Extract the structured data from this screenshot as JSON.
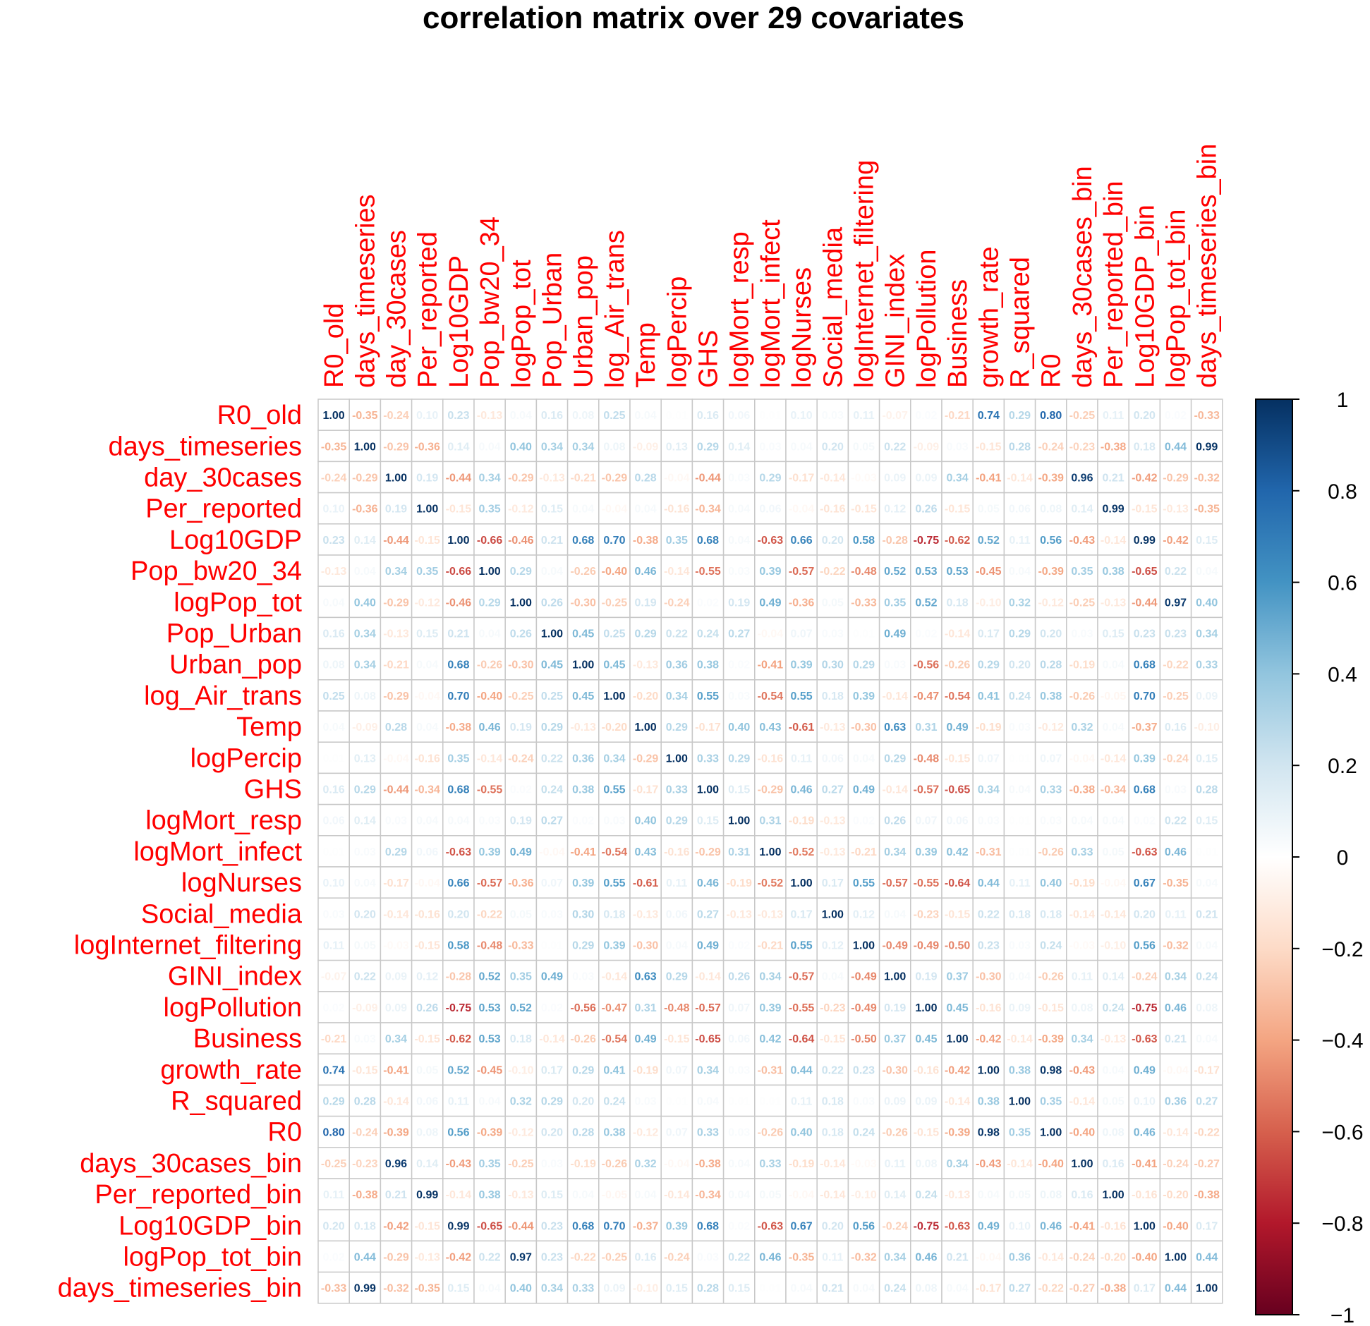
{
  "chart_data": {
    "type": "heatmap",
    "title": "correlation matrix over 29 covariates",
    "variables": [
      "R0_old",
      "days_timeseries",
      "day_30cases",
      "Per_reported",
      "Log10GDP",
      "Pop_bw20_34",
      "logPop_tot",
      "Pop_Urban",
      "Urban_pop",
      "log_Air_trans",
      "Temp",
      "logPercip",
      "GHS",
      "logMort_resp",
      "logMort_infect",
      "logNurses",
      "Social_media",
      "logInternet_filtering",
      "GINI_index",
      "logPollution",
      "Business",
      "growth_rate",
      "R_squared",
      "R0",
      "days_30cases_bin",
      "Per_reported_bin",
      "Log10GDP_bin",
      "logPop_tot_bin",
      "days_timeseries_bin"
    ],
    "matrix": [
      [
        1.0,
        -0.35,
        -0.24,
        0.1,
        0.23,
        -0.13,
        0.04,
        0.16,
        0.08,
        0.25,
        0.04,
        0.01,
        0.16,
        0.06,
        0.01,
        0.1,
        0.03,
        0.11,
        -0.07,
        0.02,
        -0.21,
        0.74,
        0.29,
        0.8,
        -0.25,
        0.11,
        0.2,
        0.02,
        -0.33
      ],
      [
        -0.35,
        1.0,
        -0.29,
        -0.36,
        0.14,
        0.04,
        0.4,
        0.34,
        0.34,
        0.08,
        -0.09,
        0.13,
        0.29,
        0.14,
        0.03,
        0.04,
        0.2,
        0.05,
        0.22,
        -0.09,
        0.03,
        -0.15,
        0.28,
        -0.24,
        -0.23,
        -0.38,
        0.18,
        0.44,
        0.99
      ],
      [
        -0.24,
        -0.29,
        1.0,
        0.19,
        -0.44,
        0.34,
        -0.29,
        -0.13,
        -0.21,
        -0.29,
        0.28,
        -0.04,
        -0.44,
        0.03,
        0.29,
        -0.17,
        -0.14,
        -0.03,
        0.09,
        0.09,
        0.34,
        -0.41,
        -0.14,
        -0.39,
        0.96,
        0.21,
        -0.42,
        -0.29,
        -0.32
      ],
      [
        0.1,
        -0.36,
        0.19,
        1.0,
        -0.15,
        0.35,
        -0.12,
        0.15,
        0.04,
        -0.04,
        0.04,
        -0.16,
        -0.34,
        0.04,
        0.06,
        -0.04,
        -0.16,
        -0.15,
        0.12,
        0.26,
        -0.15,
        0.05,
        0.06,
        0.08,
        0.14,
        0.99,
        -0.15,
        -0.13,
        -0.35
      ],
      [
        0.23,
        0.14,
        -0.44,
        -0.15,
        1.0,
        -0.66,
        -0.46,
        0.21,
        0.68,
        0.7,
        -0.38,
        0.35,
        0.68,
        0.04,
        -0.63,
        0.66,
        0.2,
        0.58,
        -0.28,
        -0.75,
        -0.62,
        0.52,
        0.11,
        0.56,
        -0.43,
        -0.14,
        0.99,
        -0.42,
        0.15
      ],
      [
        -0.13,
        0.04,
        0.34,
        0.35,
        -0.66,
        1.0,
        0.29,
        0.04,
        -0.26,
        -0.4,
        0.46,
        -0.14,
        -0.55,
        0.03,
        0.39,
        -0.57,
        -0.22,
        -0.48,
        0.52,
        0.53,
        0.53,
        -0.45,
        0.04,
        -0.39,
        0.35,
        0.38,
        -0.65,
        0.22,
        0.04
      ],
      [
        0.04,
        0.4,
        -0.29,
        -0.12,
        -0.46,
        0.29,
        1.0,
        0.26,
        -0.3,
        -0.25,
        0.19,
        -0.24,
        0.02,
        0.19,
        0.49,
        -0.36,
        0.05,
        -0.33,
        0.35,
        0.52,
        0.18,
        -0.1,
        0.32,
        -0.12,
        -0.25,
        -0.13,
        -0.44,
        0.97,
        0.4
      ],
      [
        0.16,
        0.34,
        -0.13,
        0.15,
        0.21,
        0.04,
        0.26,
        1.0,
        0.45,
        0.25,
        0.29,
        0.22,
        0.24,
        0.27,
        -0.04,
        0.07,
        0.03,
        0.01,
        0.49,
        0.02,
        -0.14,
        0.17,
        0.29,
        0.2,
        0.03,
        0.15,
        0.23,
        0.23,
        0.34
      ],
      [
        0.08,
        0.34,
        -0.21,
        0.04,
        0.68,
        -0.26,
        -0.3,
        0.45,
        1.0,
        0.45,
        -0.13,
        0.36,
        0.38,
        0.02,
        -0.41,
        0.39,
        0.3,
        0.29,
        0.03,
        -0.56,
        -0.26,
        0.29,
        0.2,
        0.28,
        -0.19,
        0.04,
        0.68,
        -0.22,
        0.33
      ],
      [
        0.25,
        0.08,
        -0.29,
        -0.04,
        0.7,
        -0.4,
        -0.25,
        0.25,
        0.45,
        1.0,
        -0.2,
        0.34,
        0.55,
        0.03,
        -0.54,
        0.55,
        0.18,
        0.39,
        -0.14,
        -0.47,
        -0.54,
        0.41,
        0.24,
        0.38,
        -0.26,
        -0.05,
        0.7,
        -0.25,
        0.09
      ],
      [
        0.04,
        -0.09,
        0.28,
        0.04,
        -0.38,
        0.46,
        0.19,
        0.29,
        -0.13,
        -0.2,
        1.0,
        0.29,
        -0.17,
        0.4,
        0.43,
        -0.61,
        -0.13,
        -0.3,
        0.63,
        0.31,
        0.49,
        -0.19,
        0.03,
        -0.12,
        0.32,
        0.04,
        -0.37,
        0.16,
        -0.1
      ],
      [
        0.01,
        0.13,
        -0.04,
        -0.16,
        0.35,
        -0.14,
        -0.24,
        0.22,
        0.36,
        0.34,
        -0.29,
        1.0,
        0.33,
        0.29,
        -0.16,
        0.11,
        0.06,
        0.04,
        0.29,
        -0.48,
        -0.15,
        0.07,
        0.01,
        0.07,
        -0.04,
        -0.14,
        0.39,
        -0.24,
        0.15
      ],
      [
        0.16,
        0.29,
        -0.44,
        -0.34,
        0.68,
        -0.55,
        0.02,
        0.24,
        0.38,
        0.55,
        -0.17,
        0.33,
        1.0,
        0.15,
        -0.29,
        0.46,
        0.27,
        0.49,
        -0.14,
        -0.57,
        -0.65,
        0.34,
        0.04,
        0.33,
        -0.38,
        -0.34,
        0.68,
        0.03,
        0.28
      ],
      [
        0.06,
        0.14,
        0.03,
        0.04,
        0.04,
        0.03,
        0.19,
        0.27,
        0.02,
        0.03,
        0.4,
        0.29,
        0.15,
        1.0,
        0.31,
        -0.19,
        -0.13,
        0.02,
        0.26,
        0.07,
        0.06,
        0.03,
        0.01,
        0.03,
        0.04,
        0.04,
        0.02,
        0.22,
        0.15
      ],
      [
        0.01,
        0.03,
        0.29,
        0.06,
        -0.63,
        0.39,
        0.49,
        -0.04,
        -0.41,
        -0.54,
        0.43,
        -0.16,
        -0.29,
        0.31,
        1.0,
        -0.52,
        -0.13,
        -0.21,
        0.34,
        0.39,
        0.42,
        -0.31,
        0.01,
        -0.26,
        0.33,
        0.05,
        -0.63,
        0.46,
        0.01
      ],
      [
        0.1,
        0.04,
        -0.17,
        -0.04,
        0.66,
        -0.57,
        -0.36,
        0.07,
        0.39,
        0.55,
        -0.61,
        0.11,
        0.46,
        -0.19,
        -0.52,
        1.0,
        0.17,
        0.55,
        -0.57,
        -0.55,
        -0.64,
        0.44,
        0.11,
        0.4,
        -0.19,
        -0.04,
        0.67,
        -0.35,
        0.04
      ],
      [
        0.03,
        0.2,
        -0.14,
        -0.16,
        0.2,
        -0.22,
        0.05,
        0.03,
        0.3,
        0.18,
        -0.13,
        0.06,
        0.27,
        -0.13,
        -0.13,
        0.17,
        1.0,
        0.12,
        0.04,
        -0.23,
        -0.15,
        0.22,
        0.18,
        0.18,
        -0.14,
        -0.14,
        0.2,
        0.11,
        0.21
      ],
      [
        0.11,
        0.05,
        -0.03,
        -0.15,
        0.58,
        -0.48,
        -0.33,
        0.01,
        0.29,
        0.39,
        -0.3,
        0.04,
        0.49,
        0.02,
        -0.21,
        0.55,
        0.12,
        1.0,
        -0.49,
        -0.49,
        -0.5,
        0.23,
        0.03,
        0.24,
        -0.03,
        -0.1,
        0.56,
        -0.32,
        0.04
      ],
      [
        -0.07,
        0.22,
        0.09,
        0.12,
        -0.28,
        0.52,
        0.35,
        0.49,
        0.03,
        -0.14,
        0.63,
        0.29,
        -0.14,
        0.26,
        0.34,
        -0.57,
        0.04,
        -0.49,
        1.0,
        0.19,
        0.37,
        -0.3,
        0.04,
        -0.26,
        0.11,
        0.14,
        -0.24,
        0.34,
        0.24
      ],
      [
        0.02,
        -0.09,
        0.09,
        0.26,
        -0.75,
        0.53,
        0.52,
        0.02,
        -0.56,
        -0.47,
        0.31,
        -0.48,
        -0.57,
        0.07,
        0.39,
        -0.55,
        -0.23,
        -0.49,
        0.19,
        1.0,
        0.45,
        -0.16,
        0.09,
        -0.15,
        0.08,
        0.24,
        -0.75,
        0.46,
        0.08
      ],
      [
        -0.21,
        0.03,
        0.34,
        -0.15,
        -0.62,
        0.53,
        0.18,
        -0.14,
        -0.26,
        -0.54,
        0.49,
        -0.15,
        -0.65,
        0.06,
        0.42,
        -0.64,
        -0.15,
        -0.5,
        0.37,
        0.45,
        1.0,
        -0.42,
        -0.14,
        -0.39,
        0.34,
        -0.13,
        -0.63,
        0.21,
        0.04
      ],
      [
        0.74,
        -0.15,
        -0.41,
        0.05,
        0.52,
        -0.45,
        -0.1,
        0.17,
        0.29,
        0.41,
        -0.19,
        0.07,
        0.34,
        0.03,
        -0.31,
        0.44,
        0.22,
        0.23,
        -0.3,
        -0.16,
        -0.42,
        1.0,
        0.38,
        0.98,
        -0.43,
        0.04,
        0.49,
        -0.04,
        -0.17
      ],
      [
        0.29,
        0.28,
        -0.14,
        0.06,
        0.11,
        0.04,
        0.32,
        0.29,
        0.2,
        0.24,
        0.03,
        0.01,
        0.04,
        0.01,
        0.01,
        0.11,
        0.18,
        0.03,
        0.09,
        0.09,
        -0.14,
        0.38,
        1.0,
        0.35,
        -0.14,
        0.05,
        0.1,
        0.36,
        0.27
      ],
      [
        0.8,
        -0.24,
        -0.39,
        0.08,
        0.56,
        -0.39,
        -0.12,
        0.2,
        0.28,
        0.38,
        -0.12,
        0.07,
        0.33,
        0.03,
        -0.26,
        0.4,
        0.18,
        0.24,
        -0.26,
        -0.15,
        -0.39,
        0.98,
        0.35,
        1.0,
        -0.4,
        0.08,
        0.46,
        -0.14,
        -0.22
      ],
      [
        -0.25,
        -0.23,
        0.96,
        0.14,
        -0.43,
        0.35,
        -0.25,
        0.03,
        -0.19,
        -0.26,
        0.32,
        -0.04,
        -0.38,
        0.04,
        0.33,
        -0.19,
        -0.14,
        -0.03,
        0.11,
        0.08,
        0.34,
        -0.43,
        -0.14,
        -0.4,
        1.0,
        0.16,
        -0.41,
        -0.24,
        -0.27
      ],
      [
        0.11,
        -0.38,
        0.21,
        0.99,
        -0.14,
        0.38,
        -0.13,
        0.15,
        0.04,
        -0.05,
        0.04,
        -0.14,
        -0.34,
        0.04,
        0.05,
        -0.04,
        -0.14,
        -0.1,
        0.14,
        0.24,
        -0.13,
        0.04,
        0.05,
        0.08,
        0.16,
        1.0,
        -0.16,
        -0.2,
        -0.38
      ],
      [
        0.2,
        0.18,
        -0.42,
        -0.15,
        0.99,
        -0.65,
        -0.44,
        0.23,
        0.68,
        0.7,
        -0.37,
        0.39,
        0.68,
        0.02,
        -0.63,
        0.67,
        0.2,
        0.56,
        -0.24,
        -0.75,
        -0.63,
        0.49,
        0.1,
        0.46,
        -0.41,
        -0.16,
        1.0,
        -0.4,
        0.17
      ],
      [
        0.02,
        0.44,
        -0.29,
        -0.13,
        -0.42,
        0.22,
        0.97,
        0.23,
        -0.22,
        -0.25,
        0.16,
        -0.24,
        0.03,
        0.22,
        0.46,
        -0.35,
        0.11,
        -0.32,
        0.34,
        0.46,
        0.21,
        -0.04,
        0.36,
        -0.14,
        -0.24,
        -0.2,
        -0.4,
        1.0,
        0.44
      ],
      [
        -0.33,
        0.99,
        -0.32,
        -0.35,
        0.15,
        0.04,
        0.4,
        0.34,
        0.33,
        0.09,
        -0.1,
        0.15,
        0.28,
        0.15,
        0.01,
        0.04,
        0.21,
        0.04,
        0.24,
        0.08,
        0.04,
        -0.17,
        0.27,
        -0.22,
        -0.27,
        -0.38,
        0.17,
        0.44,
        1.0
      ]
    ],
    "colorbar": {
      "min": -1,
      "max": 1,
      "ticks": [
        "1",
        "0.8",
        "0.6",
        "0.4",
        "0.2",
        "0",
        "−0.2",
        "−0.4",
        "−0.6",
        "−0.8",
        "−1"
      ],
      "colors": [
        "#67001F",
        "#B2182B",
        "#D6604D",
        "#F4A582",
        "#FDDBC7",
        "#FFFFFF",
        "#D1E5F0",
        "#92C5DE",
        "#4393C3",
        "#2166AC",
        "#053061"
      ]
    },
    "label_color": "#FF0000",
    "grid": true
  }
}
